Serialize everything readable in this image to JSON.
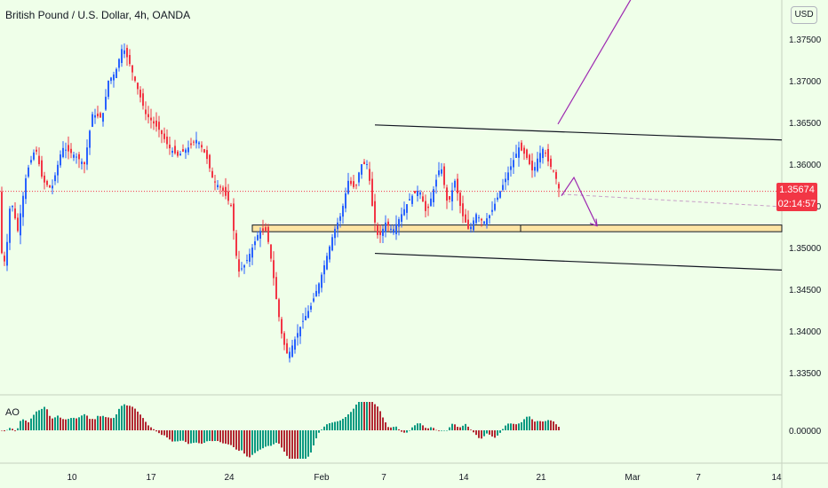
{
  "header": {
    "title": "British Pound / U.S. Dollar, 4h, OANDA",
    "currency": "USD",
    "indicator": "AO"
  },
  "last_price": {
    "value": "1.35674",
    "countdown": "02:14:57"
  },
  "colors": {
    "background": "#efffe9",
    "up": "#2962ff",
    "down": "#f23645",
    "ao_up": "#089981",
    "ao_down": "#b22833",
    "channel": "#131722",
    "zone_fill": "#fde4a3",
    "projection": "#9c27b0"
  },
  "chart_data": {
    "type": "candlestick",
    "price_axis": {
      "ticks": [
        1.375,
        1.37,
        1.365,
        1.36,
        1.355,
        1.35,
        1.345,
        1.34,
        1.335
      ],
      "range": [
        1.331,
        1.3785
      ]
    },
    "tick_labels": [
      "1.37500",
      "1.37000",
      "1.36500",
      "1.36000",
      "1.35500",
      "1.35000",
      "1.34500",
      "1.34000",
      "1.33500"
    ],
    "x_labels": [
      "10",
      "17",
      "24",
      "Feb",
      "7",
      "14",
      "21",
      "Mar",
      "7",
      "14"
    ],
    "price_path": [
      [
        0,
        1.35
      ],
      [
        6,
        1.348
      ],
      [
        12,
        1.356
      ],
      [
        20,
        1.352
      ],
      [
        30,
        1.359
      ],
      [
        40,
        1.362
      ],
      [
        48,
        1.358
      ],
      [
        58,
        1.357
      ],
      [
        70,
        1.362
      ],
      [
        85,
        1.361
      ],
      [
        95,
        1.36
      ],
      [
        104,
        1.366
      ],
      [
        115,
        1.3655
      ],
      [
        122,
        1.37
      ],
      [
        130,
        1.371
      ],
      [
        138,
        1.3742
      ],
      [
        146,
        1.372
      ],
      [
        152,
        1.37
      ],
      [
        158,
        1.368
      ],
      [
        164,
        1.366
      ],
      [
        172,
        1.365
      ],
      [
        180,
        1.364
      ],
      [
        190,
        1.362
      ],
      [
        200,
        1.361
      ],
      [
        212,
        1.362
      ],
      [
        222,
        1.363
      ],
      [
        232,
        1.361
      ],
      [
        240,
        1.358
      ],
      [
        250,
        1.357
      ],
      [
        260,
        1.355
      ],
      [
        268,
        1.347
      ],
      [
        276,
        1.348
      ],
      [
        284,
        1.35
      ],
      [
        292,
        1.352
      ],
      [
        300,
        1.352
      ],
      [
        306,
        1.348
      ],
      [
        312,
        1.343
      ],
      [
        318,
        1.339
      ],
      [
        324,
        1.337
      ],
      [
        332,
        1.339
      ],
      [
        340,
        1.341
      ],
      [
        350,
        1.343
      ],
      [
        360,
        1.346
      ],
      [
        368,
        1.349
      ],
      [
        376,
        1.352
      ],
      [
        384,
        1.354
      ],
      [
        392,
        1.358
      ],
      [
        400,
        1.357
      ],
      [
        406,
        1.36
      ],
      [
        414,
        1.36
      ],
      [
        420,
        1.354
      ],
      [
        426,
        1.351
      ],
      [
        434,
        1.353
      ],
      [
        442,
        1.352
      ],
      [
        452,
        1.354
      ],
      [
        462,
        1.356
      ],
      [
        472,
        1.357
      ],
      [
        480,
        1.354
      ],
      [
        488,
        1.357
      ],
      [
        496,
        1.36
      ],
      [
        504,
        1.355
      ],
      [
        512,
        1.358
      ],
      [
        520,
        1.354
      ],
      [
        528,
        1.352
      ],
      [
        536,
        1.354
      ],
      [
        544,
        1.353
      ],
      [
        552,
        1.354
      ],
      [
        560,
        1.356
      ],
      [
        568,
        1.358
      ],
      [
        576,
        1.36
      ],
      [
        584,
        1.362
      ],
      [
        592,
        1.361
      ],
      [
        600,
        1.359
      ],
      [
        606,
        1.361
      ],
      [
        612,
        1.362
      ],
      [
        618,
        1.36
      ],
      [
        624,
        1.359
      ],
      [
        630,
        1.3567
      ]
    ],
    "channel": {
      "upper": [
        [
          422,
          1.3647
        ],
        [
          880,
          1.3629
        ]
      ],
      "lower": [
        [
          422,
          1.3493
        ],
        [
          880,
          1.3473
        ]
      ]
    },
    "support_zone": {
      "x_start": 284,
      "x_end": 880,
      "from": 1.3519,
      "to": 1.3527,
      "divider_x": 586
    },
    "current_line": 1.35674,
    "projection": {
      "arrow_up": [
        [
          628,
          1.3648
        ],
        [
          718,
          1.3812
        ]
      ],
      "arrow_down": [
        [
          632,
          1.3562
        ],
        [
          646,
          1.3584
        ],
        [
          672,
          1.3526
        ]
      ]
    }
  }
}
